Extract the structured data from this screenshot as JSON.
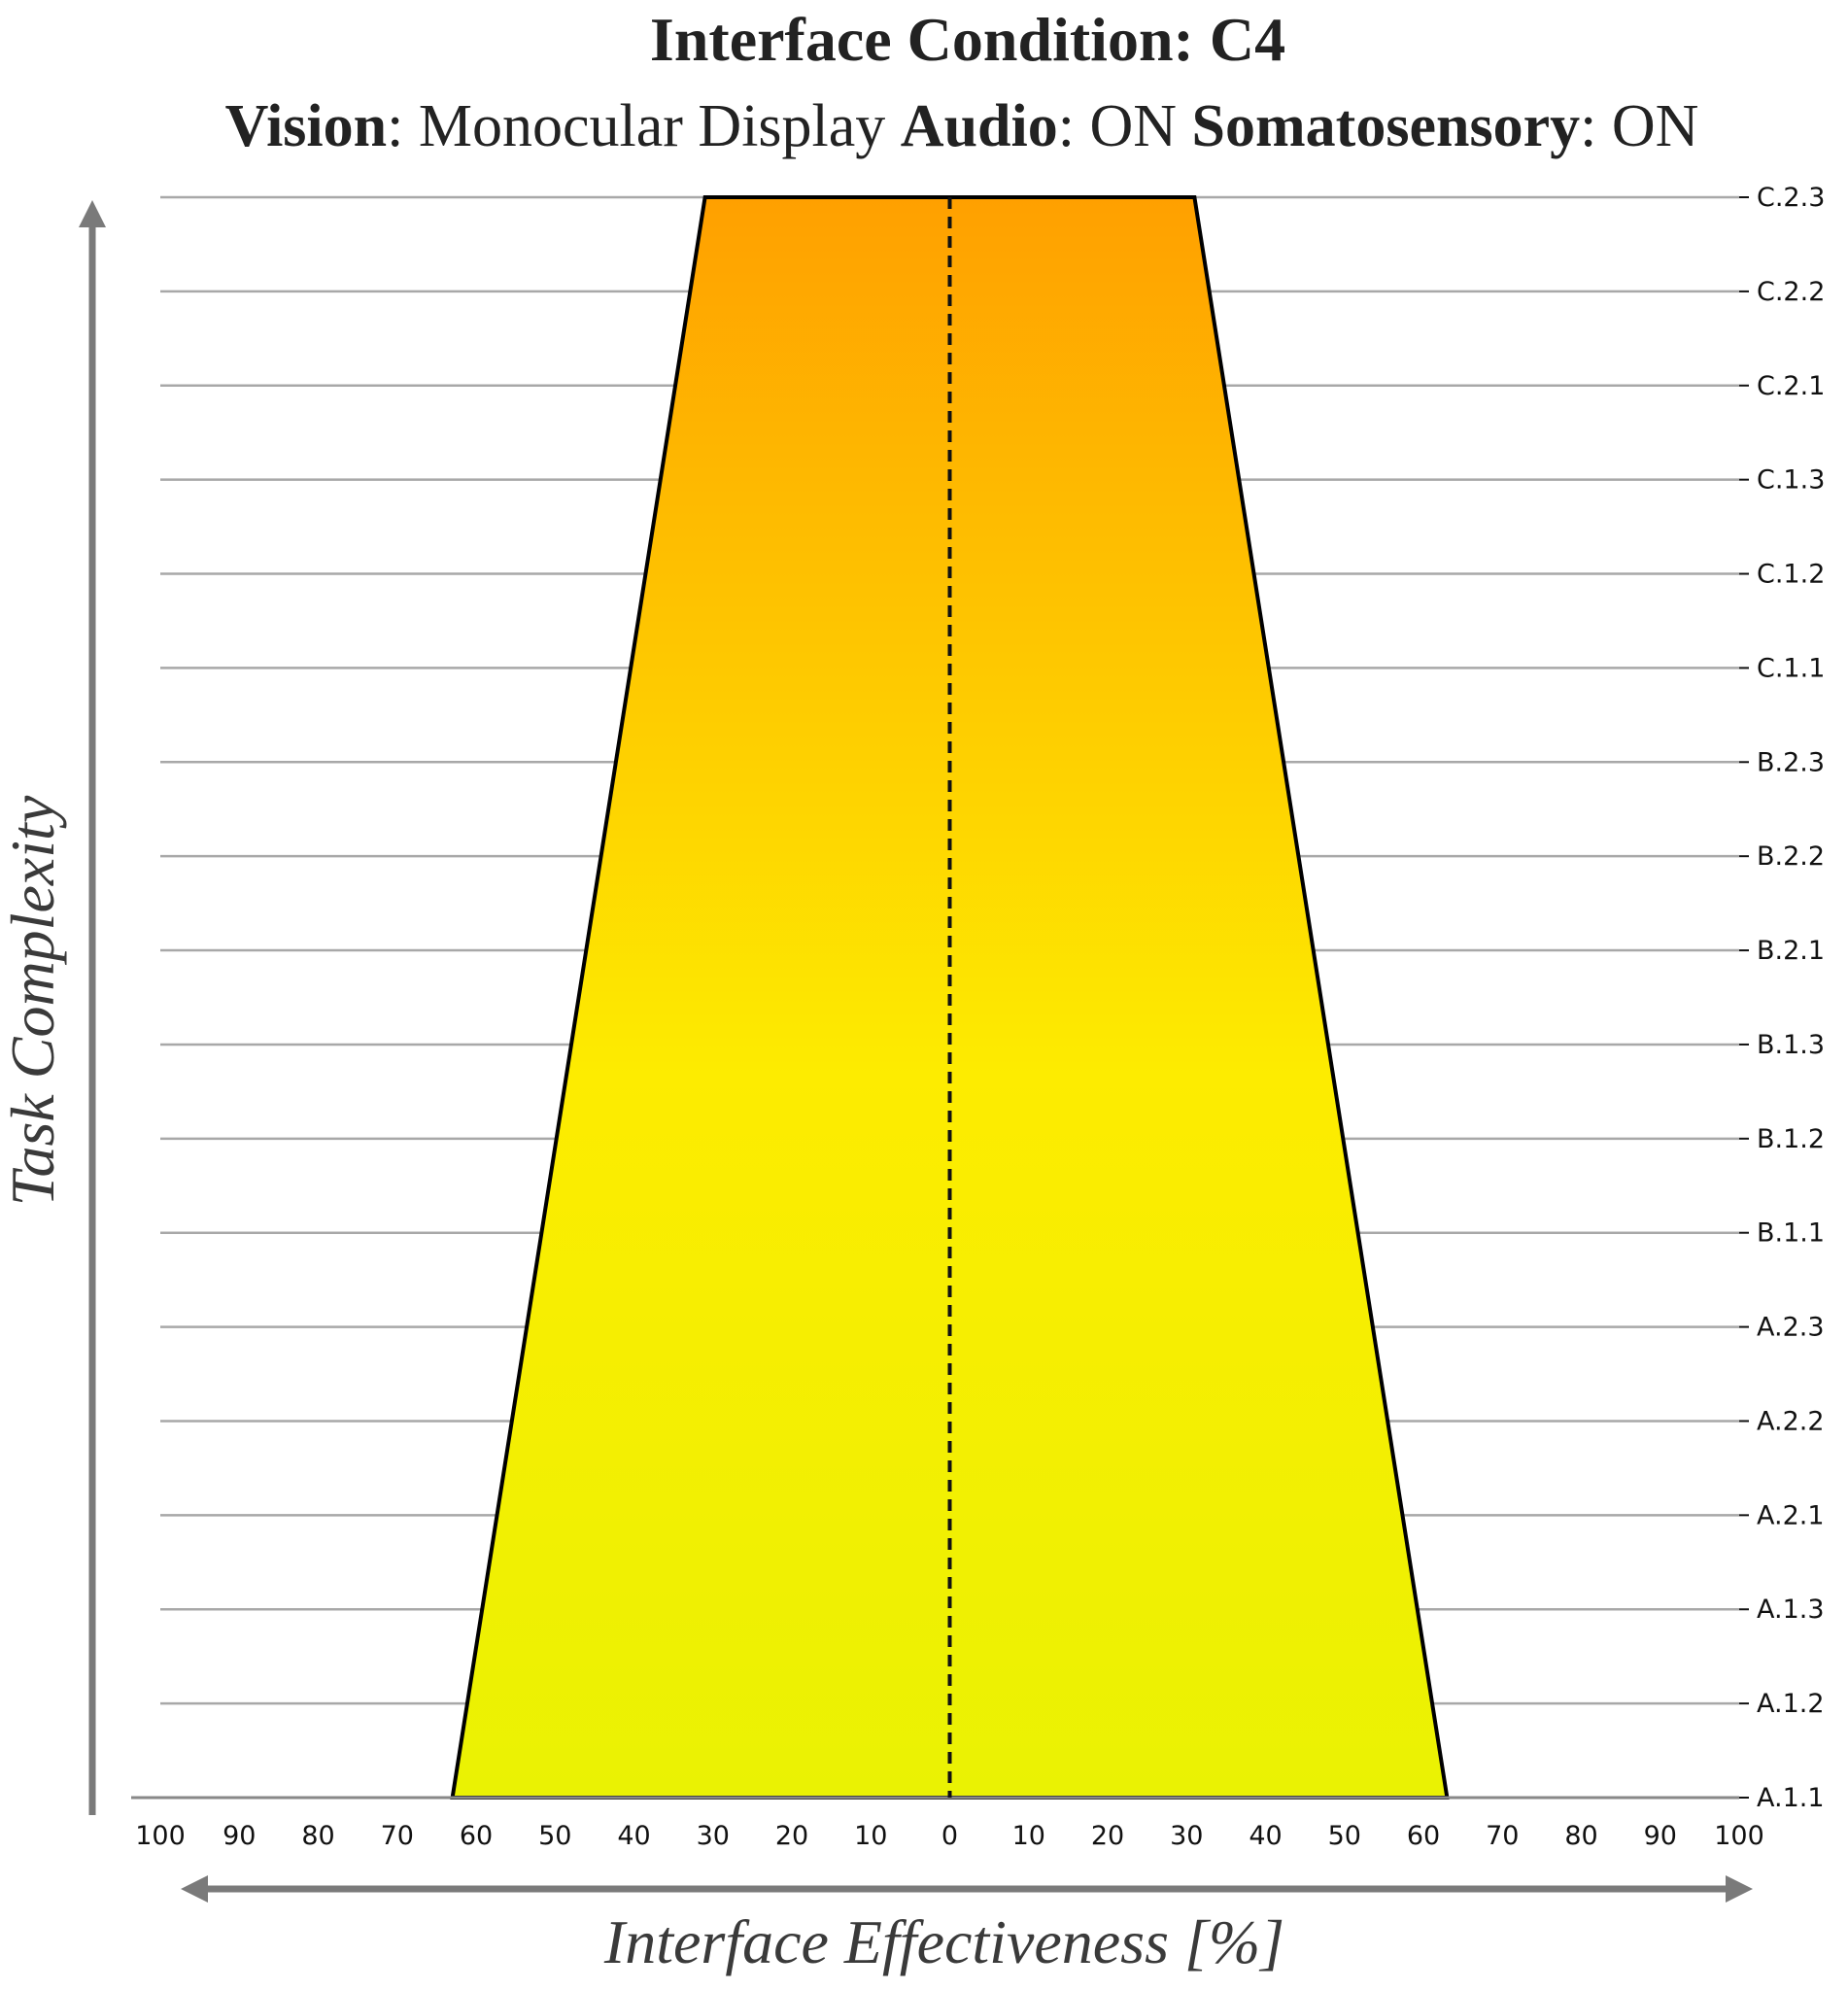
{
  "chart_data": {
    "type": "area",
    "title": "Interface Condition: C4",
    "subtitle": [
      {
        "text": "Vision",
        "bold": true
      },
      {
        "text": ": Monocular Display ",
        "bold": false
      },
      {
        "text": "Audio",
        "bold": true
      },
      {
        "text": ": ON ",
        "bold": false
      },
      {
        "text": "Somatosensory",
        "bold": true
      },
      {
        "text": ": ON",
        "bold": false
      }
    ],
    "xlabel": "Interface Effectiveness [%]",
    "ylabel": "Task Complexity",
    "x_tick_labels": [
      "100",
      "90",
      "80",
      "70",
      "60",
      "50",
      "40",
      "30",
      "20",
      "10",
      "0",
      "10",
      "20",
      "30",
      "40",
      "50",
      "60",
      "70",
      "80",
      "90",
      "100"
    ],
    "xlim": [
      -100,
      100
    ],
    "categories": [
      "A.1.1",
      "A.1.2",
      "A.1.3",
      "A.2.1",
      "A.2.2",
      "A.2.3",
      "B.1.1",
      "B.1.2",
      "B.1.3",
      "B.2.1",
      "B.2.2",
      "B.2.3",
      "C.1.1",
      "C.1.2",
      "C.1.3",
      "C.2.1",
      "C.2.2",
      "C.2.3"
    ],
    "effectiveness_bottom": 63,
    "effectiveness_top": 31,
    "center_line": 0,
    "grid": true,
    "gradient_colors": {
      "bottom": "#eaf203",
      "middle": "#fdec00",
      "top": "#ffa000"
    },
    "outline_color": "#000000",
    "grid_color": "#a8a8a8",
    "axis_arrow_color": "#7a7a7a"
  }
}
